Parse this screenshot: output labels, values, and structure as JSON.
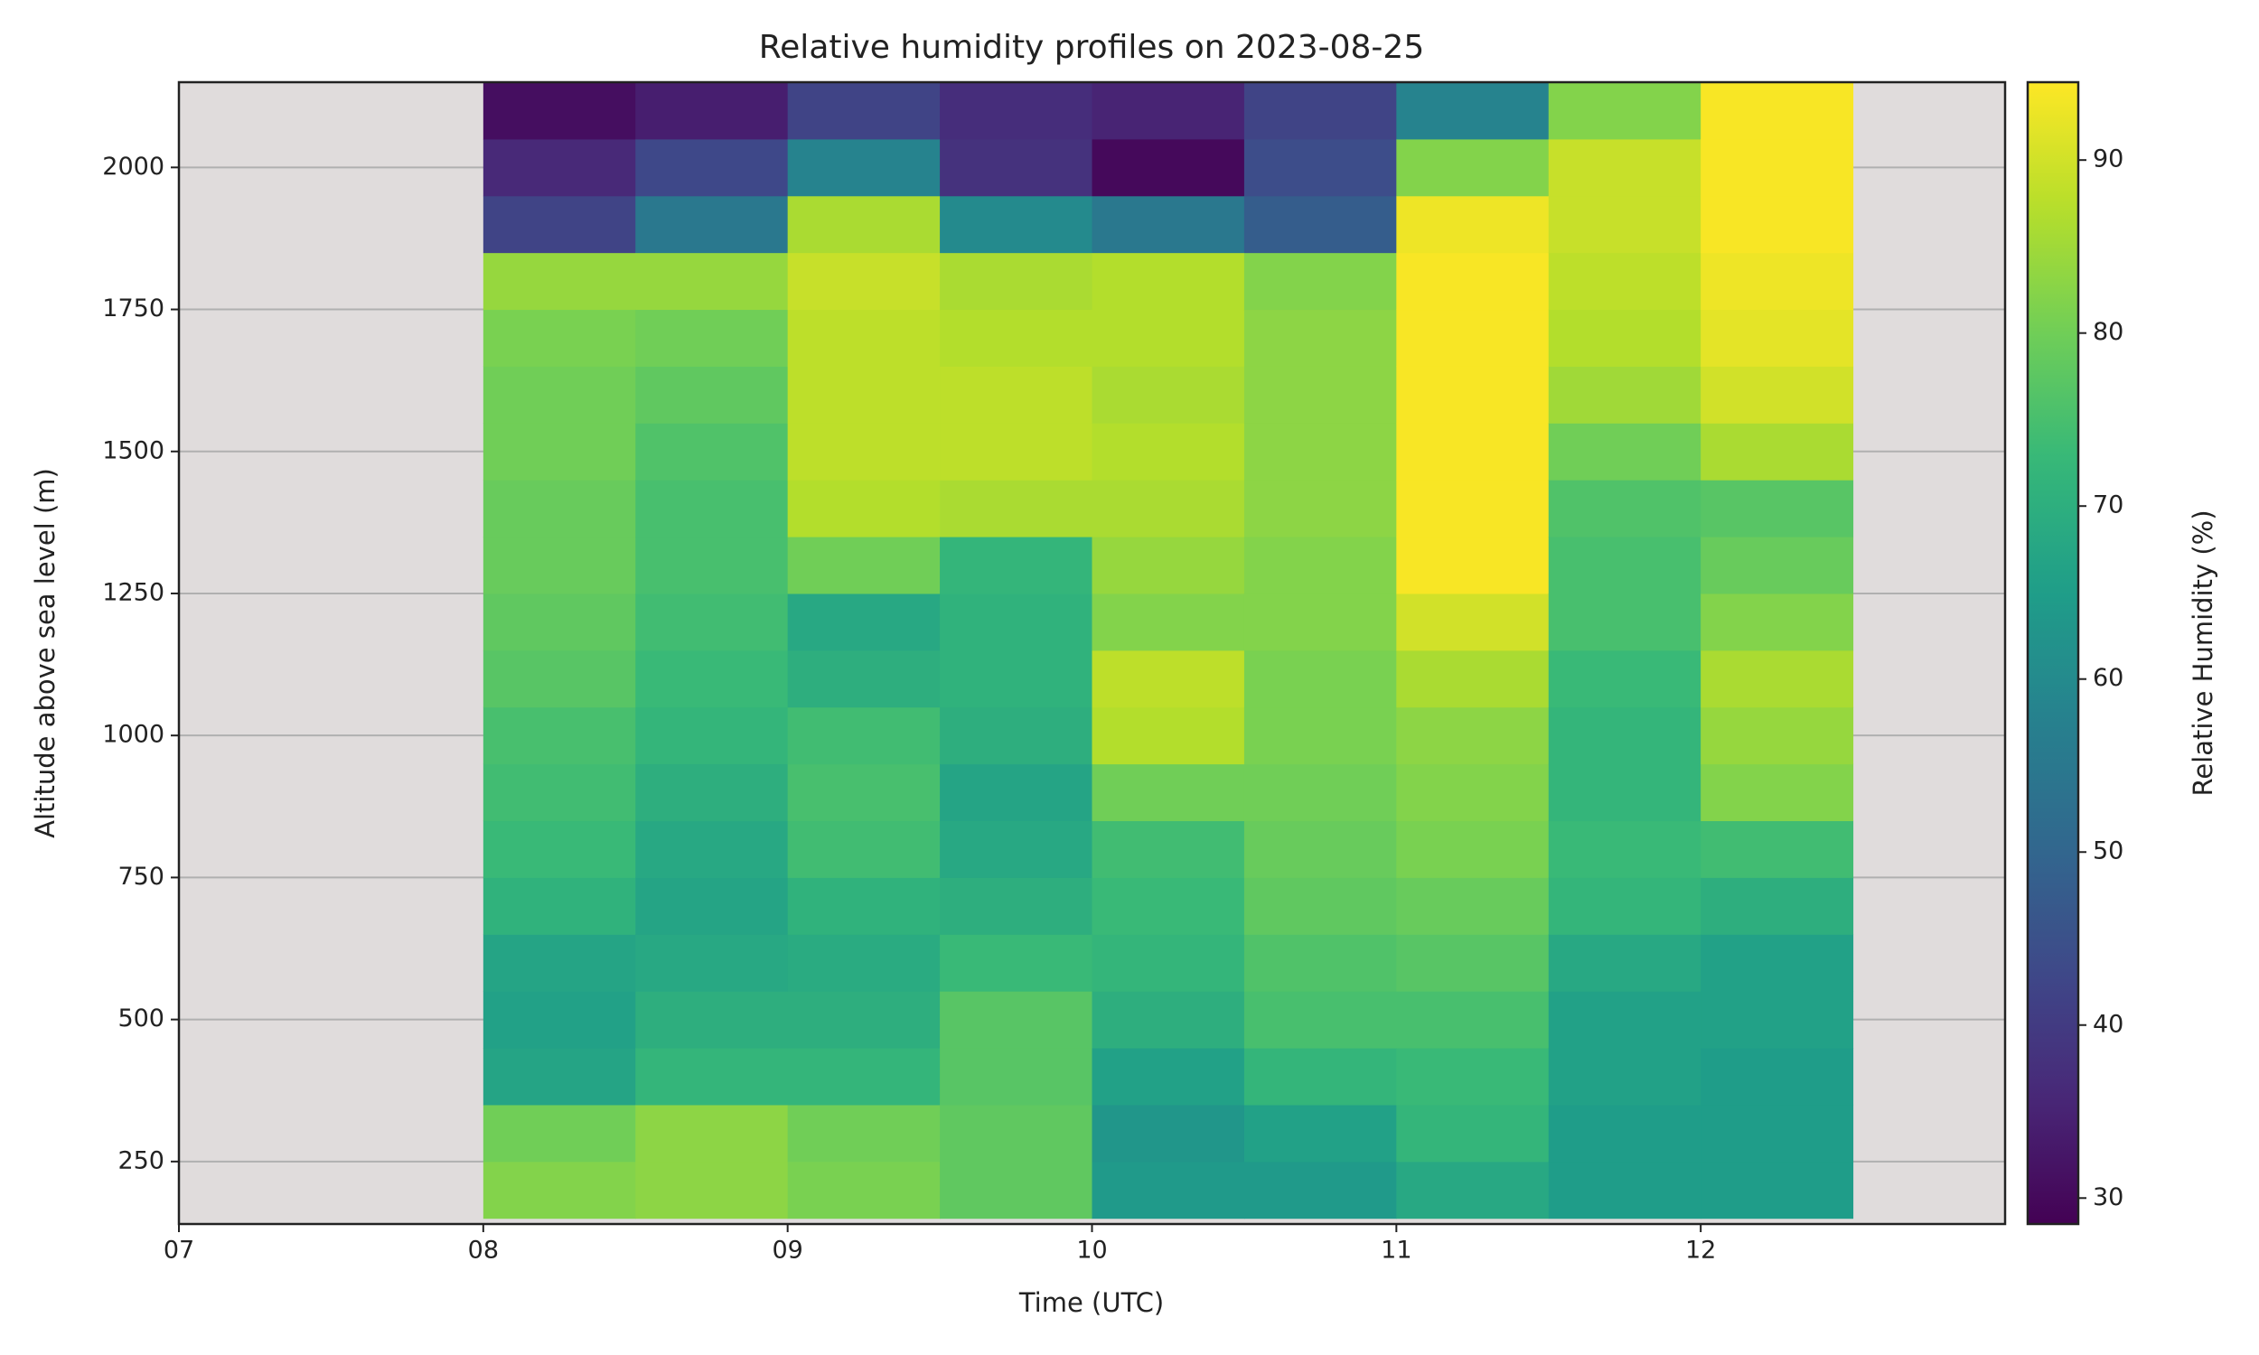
{
  "chart_data": {
    "type": "heatmap",
    "title": "Relative humidity profiles on 2023-08-25",
    "xlabel": "Time (UTC)",
    "ylabel": "Altitude above sea level (m)",
    "colorbar_label": "Relative Humidity (%)",
    "colormap": "viridis",
    "xlim": [
      7,
      13
    ],
    "xticks": [
      {
        "value": 7,
        "label": "07"
      },
      {
        "value": 8,
        "label": "08"
      },
      {
        "value": 9,
        "label": "09"
      },
      {
        "value": 10,
        "label": "10"
      },
      {
        "value": 11,
        "label": "11"
      },
      {
        "value": 12,
        "label": "12"
      }
    ],
    "ylim": [
      140,
      2150
    ],
    "yticks": [
      250,
      500,
      750,
      1000,
      1250,
      1500,
      1750,
      2000
    ],
    "grid": true,
    "clim": [
      28.5,
      94.5
    ],
    "cticks": [
      30,
      40,
      50,
      60,
      70,
      80,
      90
    ],
    "x_bins": [
      8,
      8.5,
      9,
      9.5,
      10,
      10.5,
      11,
      11.5,
      12,
      12.5
    ],
    "y_bins": [
      150,
      250,
      350,
      450,
      550,
      650,
      750,
      850,
      950,
      1050,
      1150,
      1250,
      1350,
      1450,
      1550,
      1650,
      1750,
      1850,
      1950,
      2050,
      2150
    ],
    "values": [
      [
        82,
        80,
        67,
        66,
        67,
        71,
        73,
        74,
        75,
        77,
        78,
        79,
        79,
        80,
        80,
        81,
        84,
        42,
        36,
        31
      ],
      [
        83,
        83,
        72,
        70,
        68,
        67,
        68,
        70,
        72,
        73,
        74,
        75,
        75,
        76,
        78,
        80,
        84,
        55,
        43,
        34
      ],
      [
        81,
        80,
        72,
        70,
        69,
        71,
        74,
        75,
        74,
        70,
        68,
        80,
        87,
        88,
        88,
        88,
        89,
        86,
        58,
        42
      ],
      [
        78,
        78,
        77,
        77,
        73,
        70,
        68,
        67,
        70,
        71,
        71,
        72,
        86,
        88,
        88,
        87,
        86,
        60,
        38,
        37
      ],
      [
        64,
        63,
        66,
        70,
        72,
        73,
        74,
        80,
        87,
        88,
        82,
        84,
        86,
        87,
        86,
        87,
        87,
        55,
        30,
        35
      ],
      [
        64,
        66,
        72,
        75,
        76,
        78,
        79,
        80,
        81,
        81,
        82,
        82,
        83,
        83,
        83,
        83,
        82,
        48,
        44,
        42
      ],
      [
        68,
        72,
        73,
        75,
        77,
        79,
        81,
        82,
        83,
        86,
        90,
        94,
        94,
        94,
        94,
        94,
        94,
        93,
        82,
        58
      ],
      [
        65,
        65,
        66,
        66,
        68,
        72,
        73,
        72,
        72,
        73,
        75,
        75,
        76,
        80,
        85,
        87,
        88,
        89,
        89,
        82
      ],
      [
        65,
        65,
        65,
        66,
        66,
        70,
        74,
        82,
        84,
        86,
        82,
        79,
        77,
        86,
        90,
        92,
        93,
        94,
        94,
        94
      ]
    ]
  }
}
